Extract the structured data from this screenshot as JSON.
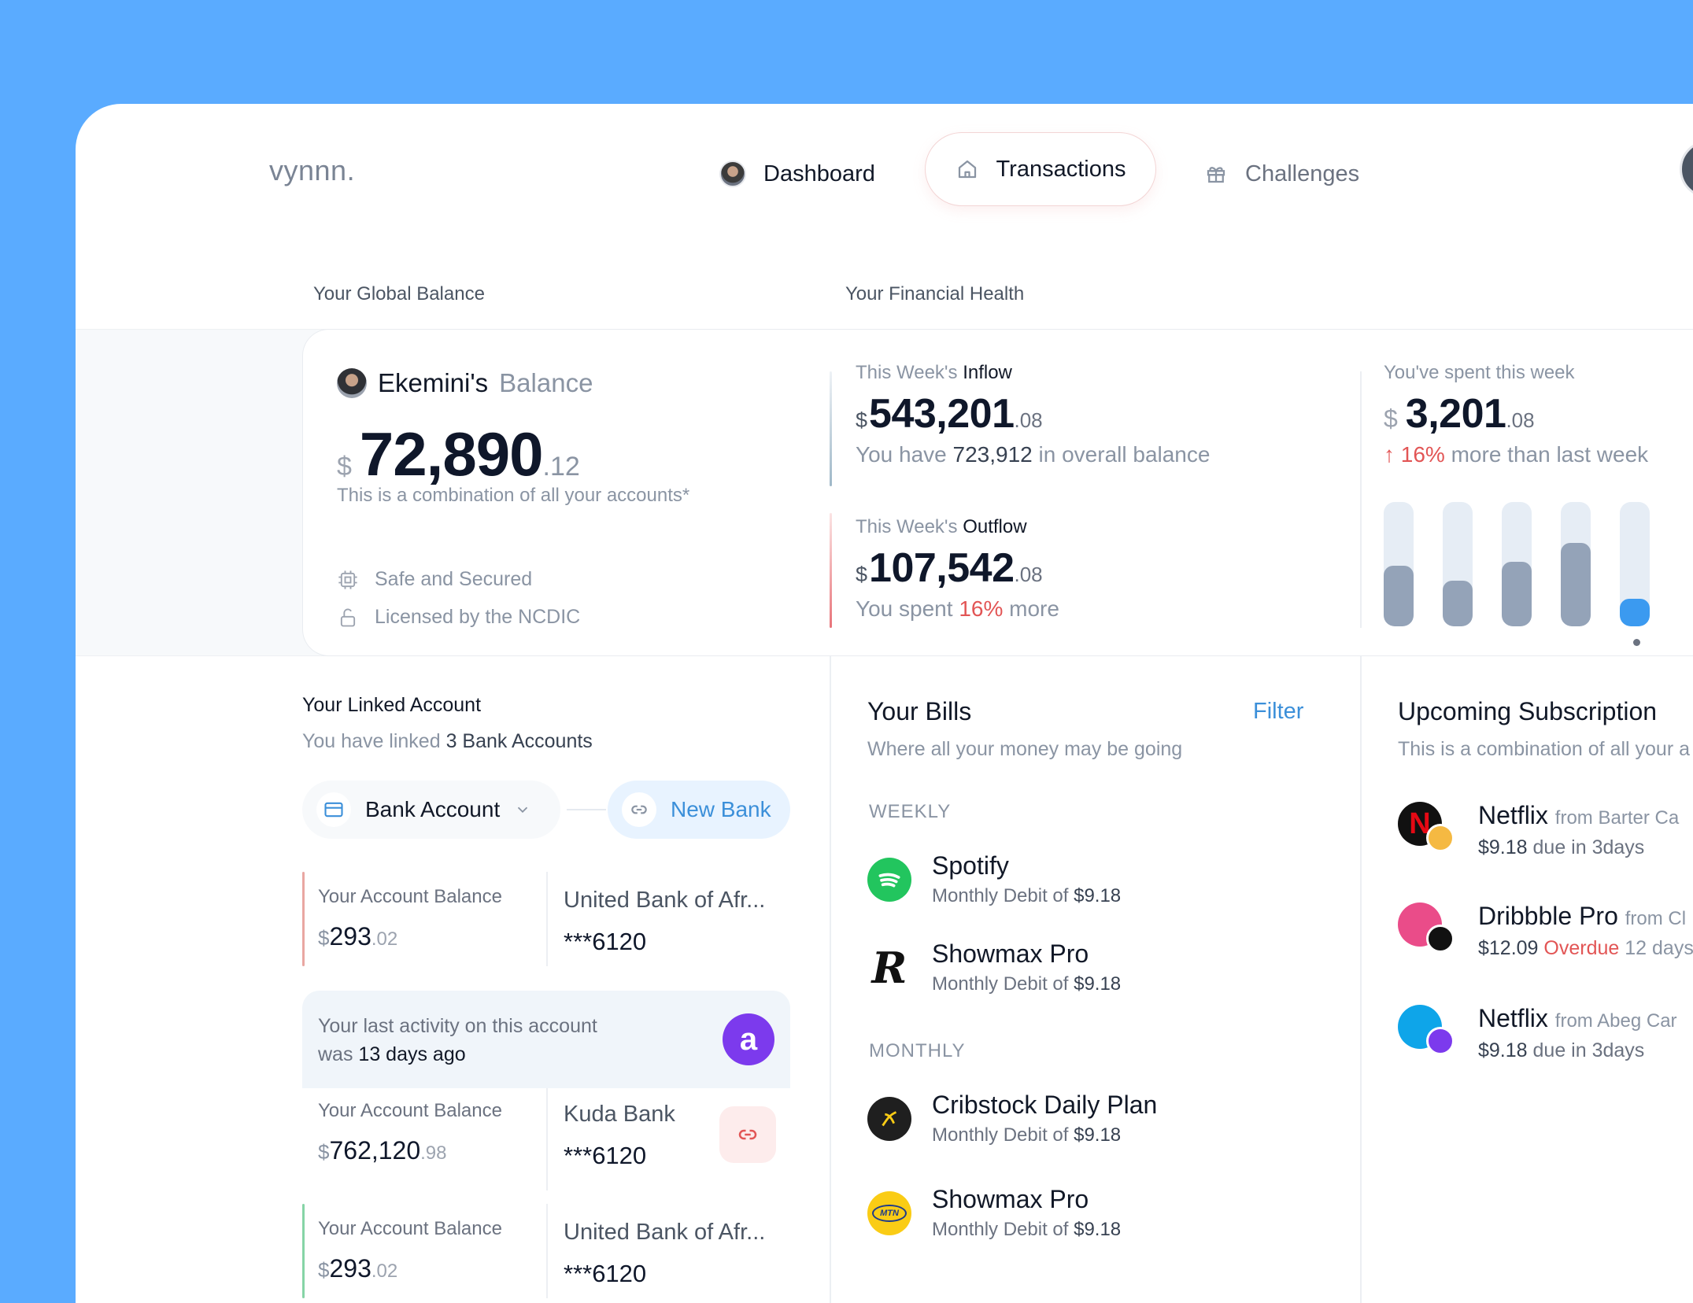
{
  "brand": "vynnn.",
  "nav": {
    "dashboard": "Dashboard",
    "transactions": "Transactions",
    "challenges": "Challenges"
  },
  "sections": {
    "global_balance": "Your Global Balance",
    "financial_health": "Your Financial Health"
  },
  "balance": {
    "owner": "Ekemini's",
    "title_suffix": "Balance",
    "currency": "$",
    "amount": "72,890",
    "decimals": ".12",
    "note": "This is a combination of all your accounts*",
    "feature_1": "Safe and Secured",
    "feature_2": "Licensed by the NCDIC"
  },
  "inflow": {
    "label_prefix": "This Week's",
    "label_bold": "Inflow",
    "currency": "$",
    "amount": "543,201",
    "decimals": ".08",
    "sub_prefix": "You have",
    "sub_value": "723,912",
    "sub_suffix": "in overall balance"
  },
  "outflow": {
    "label_prefix": "This Week's",
    "label_bold": "Outflow",
    "currency": "$",
    "amount": "107,542",
    "decimals": ".08",
    "sub_prefix": "You spent",
    "sub_value": "16%",
    "sub_suffix": "more"
  },
  "spent": {
    "label": "You've spent this week",
    "currency": "$",
    "amount": "3,201",
    "decimals": ".08",
    "arrow": "↑",
    "change": "16%",
    "change_suffix": "more than last week",
    "bars": [
      0.49,
      0.37,
      0.52,
      0.67,
      0.22
    ],
    "active_index": 4
  },
  "linked": {
    "title": "Your Linked Account",
    "sub_prefix": "You have linked",
    "sub_value": "3 Bank Accounts",
    "select_label": "Bank Account",
    "new_bank": "New Bank",
    "accounts": [
      {
        "label": "Your Account Balance",
        "currency": "$",
        "amount": "293",
        "decimals": ".02",
        "bank": "United Bank of Afr...",
        "number": "***6120"
      },
      {
        "label": "Your Account Balance",
        "currency": "$",
        "amount": "762,120",
        "decimals": ".98",
        "bank": "Kuda Bank",
        "number": "***6120"
      },
      {
        "label": "Your Account Balance",
        "currency": "$",
        "amount": "293",
        "decimals": ".02",
        "bank": "United Bank of Afr...",
        "number": "***6120"
      }
    ],
    "activity_line1": "Your last activity on this account",
    "activity_prefix": "was",
    "activity_value": "13 days ago"
  },
  "bills": {
    "title": "Your Bills",
    "filter": "Filter",
    "subtitle": "Where all your money may be going",
    "weekly_label": "WEEKLY",
    "monthly_label": "MONTHLY",
    "items": [
      {
        "name": "Spotify",
        "debit_prefix": "Monthly Debit of",
        "amount": "$9.18",
        "icon": "spotify-icon"
      },
      {
        "name": "Showmax Pro",
        "debit_prefix": "Monthly Debit of",
        "amount": "$9.18",
        "icon": "r-logo-icon"
      },
      {
        "name": "Cribstock Daily Plan",
        "debit_prefix": "Monthly Debit of",
        "amount": "$9.18",
        "icon": "cribstock-icon"
      },
      {
        "name": "Showmax Pro",
        "debit_prefix": "Monthly Debit of",
        "amount": "$9.18",
        "icon": "mtn-icon"
      }
    ]
  },
  "subscriptions": {
    "title": "Upcoming Subscription",
    "subtitle": "This is a combination of all your a",
    "items": [
      {
        "name": "Netflix",
        "from": "from Barter Ca",
        "amount": "$9.18",
        "status": "due in 3days",
        "status_type": "due"
      },
      {
        "name": "Dribbble Pro",
        "from": "from Cl",
        "amount": "$12.09",
        "status": "Overdue",
        "status_extra": "12 days",
        "status_type": "overdue"
      },
      {
        "name": "Netflix",
        "from": "from Abeg Car",
        "amount": "$9.18",
        "status": "due in 3days",
        "status_type": "due"
      }
    ]
  },
  "colors": {
    "background": "#5aabff",
    "accent_blue": "#3b8fd9",
    "danger": "#e25555",
    "bar_gray": "#94a3b8",
    "bar_active": "#3b9af0"
  }
}
